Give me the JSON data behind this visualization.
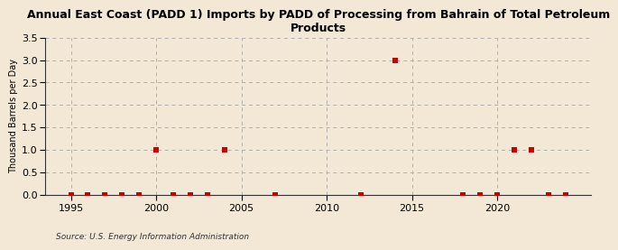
{
  "title": "Annual East Coast (PADD 1) Imports by PADD of Processing from Bahrain of Total Petroleum\nProducts",
  "ylabel": "Thousand Barrels per Day",
  "source": "Source: U.S. Energy Information Administration",
  "xlim": [
    1993.5,
    2025.5
  ],
  "ylim": [
    0.0,
    3.5
  ],
  "yticks": [
    0.0,
    0.5,
    1.0,
    1.5,
    2.0,
    2.5,
    3.0,
    3.5
  ],
  "xticks": [
    1995,
    2000,
    2005,
    2010,
    2015,
    2020
  ],
  "background_color": "#f2e8d5",
  "plot_bg_color": "#f2e8d5",
  "grid_color": "#b0b0b0",
  "marker_color": "#cc0000",
  "marker_size": 15,
  "data_x": [
    1995,
    1996,
    1997,
    1998,
    1999,
    2000,
    2001,
    2002,
    2003,
    2004,
    2007,
    2012,
    2014,
    2018,
    2019,
    2020,
    2021,
    2022,
    2023,
    2024
  ],
  "data_y": [
    0,
    0,
    0,
    0,
    0,
    1,
    0,
    0,
    0,
    1,
    0,
    0,
    3,
    0,
    0,
    0,
    1,
    1,
    0,
    0
  ]
}
